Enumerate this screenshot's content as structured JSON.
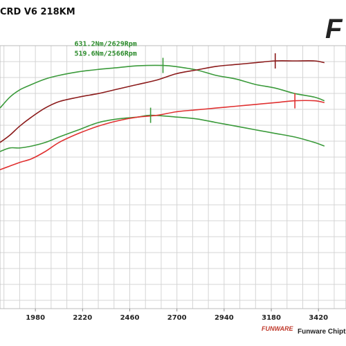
{
  "chart_data": {
    "type": "line",
    "title": "CRD V6 218KM",
    "x_range": [
      1800,
      3560
    ],
    "x_ticks": [
      1980,
      2220,
      2460,
      2700,
      2940,
      3180,
      3420
    ],
    "grid": true,
    "annotations": [
      "631.2Nm/2629Rpm",
      "519.6Nm/2566Rpm"
    ],
    "series": [
      {
        "role": "torque-tuned",
        "color": "#3a9a3a",
        "x": [
          1800,
          1850,
          1900,
          1960,
          2030,
          2100,
          2200,
          2300,
          2400,
          2500,
          2629,
          2700,
          2800,
          2900,
          3000,
          3100,
          3200,
          3300,
          3400,
          3450
        ],
        "y": [
          0.74,
          0.8,
          0.84,
          0.87,
          0.9,
          0.92,
          0.94,
          0.953,
          0.963,
          0.973,
          0.975,
          0.968,
          0.95,
          0.92,
          0.9,
          0.87,
          0.85,
          0.82,
          0.8,
          0.78
        ]
      },
      {
        "role": "torque-stock",
        "color": "#3a9a3a",
        "x": [
          1800,
          1850,
          1900,
          1960,
          2030,
          2100,
          2200,
          2300,
          2400,
          2500,
          2566,
          2700,
          2800,
          2900,
          3000,
          3100,
          3200,
          3300,
          3400,
          3450
        ],
        "y": [
          0.5,
          0.52,
          0.52,
          0.53,
          0.55,
          0.58,
          0.62,
          0.66,
          0.68,
          0.69,
          0.7,
          0.69,
          0.68,
          0.66,
          0.64,
          0.62,
          0.6,
          0.58,
          0.55,
          0.53
        ]
      },
      {
        "role": "power-tuned",
        "color": "#8b1a1a",
        "x": [
          1800,
          1850,
          1900,
          1960,
          2030,
          2100,
          2200,
          2300,
          2400,
          2500,
          2600,
          2700,
          2800,
          2900,
          3000,
          3100,
          3200,
          3300,
          3400,
          3450
        ],
        "y": [
          0.55,
          0.59,
          0.64,
          0.69,
          0.74,
          0.775,
          0.8,
          0.82,
          0.845,
          0.87,
          0.895,
          0.93,
          0.95,
          0.97,
          0.98,
          0.99,
          1.0,
          1.0,
          1.0,
          0.99
        ]
      },
      {
        "role": "power-stock",
        "color": "#e03030",
        "x": [
          1800,
          1850,
          1900,
          1960,
          2030,
          2100,
          2200,
          2300,
          2400,
          2500,
          2600,
          2700,
          2800,
          2900,
          3000,
          3100,
          3200,
          3300,
          3400,
          3450
        ],
        "y": [
          0.4,
          0.42,
          0.44,
          0.46,
          0.5,
          0.55,
          0.6,
          0.64,
          0.67,
          0.69,
          0.7,
          0.72,
          0.73,
          0.74,
          0.75,
          0.76,
          0.77,
          0.78,
          0.78,
          0.77
        ]
      }
    ]
  },
  "header": {
    "title": "CRD V6 218KM",
    "logo_text": "F"
  },
  "footer": {
    "brand": "FUNWARE",
    "text": "Funware Chipt"
  }
}
